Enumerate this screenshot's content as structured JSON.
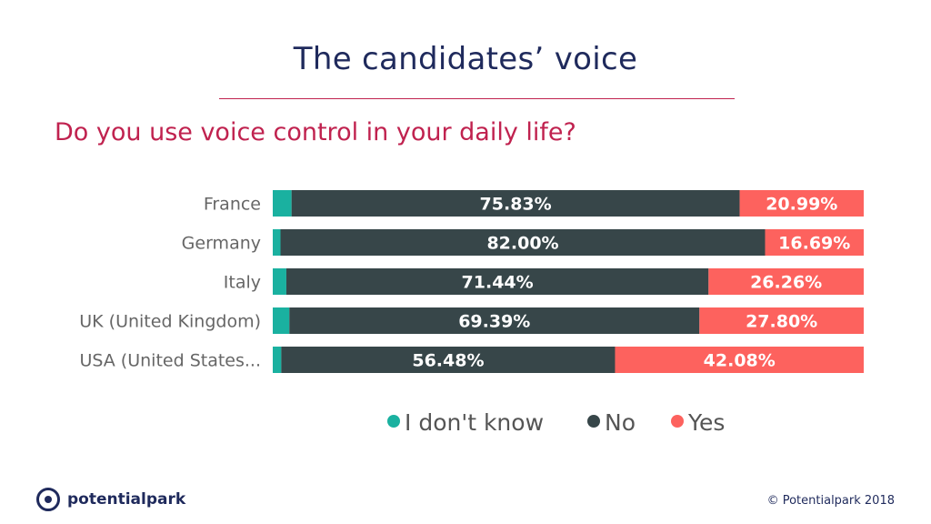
{
  "slide": {
    "title": "The candidates’ voice",
    "question": "Do you use voice control in your daily life?",
    "copyright": "© Potentialpark 2018",
    "logo_text": "potentialpark"
  },
  "colors": {
    "dont_know": "#1ab1a0",
    "no": "#374649",
    "yes": "#fd625e",
    "title": "#1f2a5c",
    "accent": "#c0224f"
  },
  "chart_data": {
    "type": "bar",
    "orientation": "horizontal",
    "stacked": true,
    "categories": [
      "France",
      "Germany",
      "Italy",
      "UK (United Kingdom)",
      "USA (United States..."
    ],
    "series": [
      {
        "name": "I don't know",
        "values": [
          3.18,
          1.31,
          2.3,
          2.81,
          1.44
        ]
      },
      {
        "name": "No",
        "values": [
          75.83,
          82.0,
          71.44,
          69.39,
          56.48
        ]
      },
      {
        "name": "Yes",
        "values": [
          20.99,
          16.69,
          26.26,
          27.8,
          42.08
        ]
      }
    ],
    "data_labels": {
      "No": [
        "75.83%",
        "82.00%",
        "71.44%",
        "69.39%",
        "56.48%"
      ],
      "Yes": [
        "20.99%",
        "16.69%",
        "26.26%",
        "27.80%",
        "42.08%"
      ]
    },
    "legend": {
      "position": "bottom",
      "items": [
        "I don't know",
        "No",
        "Yes"
      ]
    },
    "xlim": [
      0,
      100
    ]
  }
}
